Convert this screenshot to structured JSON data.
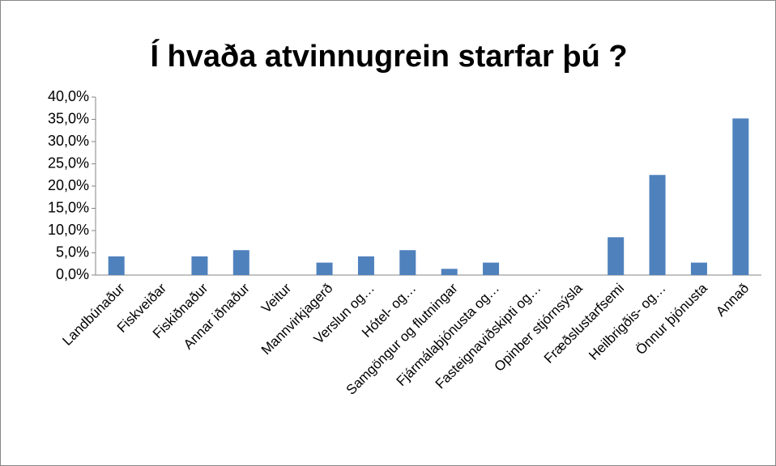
{
  "chart_data": {
    "type": "bar",
    "title": "Í hvaða atvinnugrein starfar þú ?",
    "categories": [
      "Landbúnaður",
      "Fiskveiðar",
      "Fiskiðnaður",
      "Annar iðnaður",
      "Veitur",
      "Mannvirkjagerð",
      "Verslun og…",
      "Hótel- og…",
      "Samgöngur og flutningar",
      "Fjármálaþjónusta og…",
      "Fasteignaviðskipti og…",
      "Opinber stjórnsýsla",
      "Fræðslustarfsemi",
      "Heilbrigðis- og…",
      "Önnur þjónusta",
      "Annað"
    ],
    "values": [
      4.2,
      0,
      4.2,
      5.6,
      0,
      2.8,
      4.2,
      5.6,
      1.4,
      2.8,
      0,
      0,
      8.5,
      22.5,
      2.8,
      35.2
    ],
    "color": "#4f81bd",
    "ylim": [
      0,
      40
    ],
    "yticks": [
      {
        "value": 0,
        "label": "0,0%"
      },
      {
        "value": 5,
        "label": "5,0%"
      },
      {
        "value": 10,
        "label": "10,0%"
      },
      {
        "value": 15,
        "label": "15,0%"
      },
      {
        "value": 20,
        "label": "20,0%"
      },
      {
        "value": 25,
        "label": "25,0%"
      },
      {
        "value": 30,
        "label": "30,0%"
      },
      {
        "value": 35,
        "label": "35,0%"
      },
      {
        "value": 40,
        "label": "40,0%"
      }
    ],
    "grid": false
  }
}
